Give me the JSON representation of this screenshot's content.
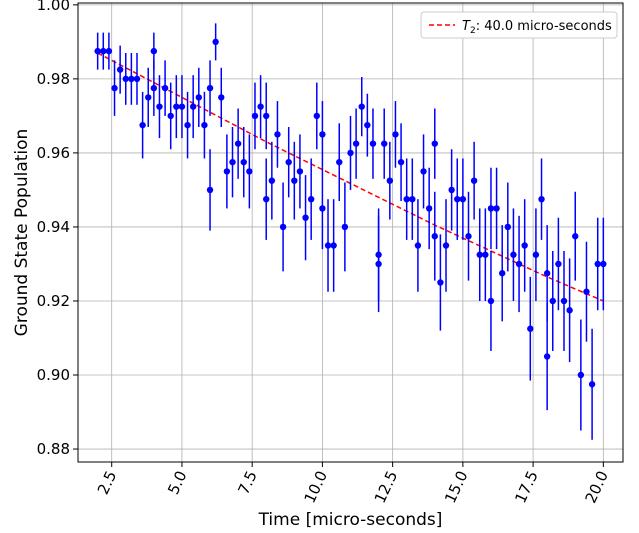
{
  "chart_data": {
    "type": "scatter",
    "title": "",
    "xlabel": "Time [micro-seconds]",
    "ylabel": "Ground State Population",
    "xlim": [
      1.3,
      20.7
    ],
    "ylim": [
      0.8765,
      1.0005
    ],
    "xticks": [
      2.5,
      5.0,
      7.5,
      10.0,
      12.5,
      15.0,
      17.5,
      20.0
    ],
    "xtick_labels": [
      "2.5",
      "5.0",
      "7.5",
      "10.0",
      "12.5",
      "15.0",
      "17.5",
      "20.0"
    ],
    "yticks": [
      0.88,
      0.9,
      0.92,
      0.94,
      0.96,
      0.98,
      1.0
    ],
    "ytick_labels": [
      "0.88",
      "0.90",
      "0.92",
      "0.94",
      "0.96",
      "0.98",
      "1.00"
    ],
    "grid": true,
    "legend_position": "top-right",
    "colors": {
      "points": "#0000ff",
      "fit": "#ff0000"
    },
    "fit": {
      "name_prefix": "T",
      "name_sub": "2",
      "name_suffix": ": 40.0 micro-seconds",
      "style": "dashed",
      "x": [
        2.0,
        4.0,
        6.0,
        8.0,
        10.0,
        12.0,
        14.0,
        16.0,
        18.0,
        20.0
      ],
      "y": [
        0.987,
        0.979,
        0.971,
        0.963,
        0.9555,
        0.948,
        0.9405,
        0.9335,
        0.9265,
        0.92
      ]
    },
    "series": [
      {
        "x": [
          2.0,
          2.2,
          2.4,
          2.6,
          2.8,
          3.0,
          3.2,
          3.4,
          3.6,
          3.8,
          4.0,
          4.0,
          4.2,
          4.4,
          4.6,
          4.8,
          5.0,
          5.2,
          5.4,
          5.6,
          5.8,
          6.0,
          6.0,
          6.2,
          6.4,
          6.6,
          6.8,
          7.0,
          7.2,
          7.4,
          7.6,
          7.8,
          8.0,
          8.0,
          8.2,
          8.4,
          8.6,
          8.8,
          9.0,
          9.2,
          9.4,
          9.6,
          9.8,
          10.0,
          10.0,
          10.2,
          10.4,
          10.6,
          10.8,
          11.0,
          11.2,
          11.4,
          11.6,
          11.8,
          12.0,
          12.0,
          12.2,
          12.4,
          12.6,
          12.8,
          13.0,
          13.2,
          13.4,
          13.6,
          13.8,
          14.0,
          14.0,
          14.2,
          14.4,
          14.6,
          14.8,
          15.0,
          15.2,
          15.4,
          15.6,
          15.8,
          16.0,
          16.0,
          16.2,
          16.4,
          16.6,
          16.8,
          17.0,
          17.2,
          17.4,
          17.6,
          17.8,
          18.0,
          18.0,
          18.2,
          18.4,
          18.6,
          18.8,
          19.0,
          19.2,
          19.4,
          19.6,
          19.8,
          20.0
        ],
        "y": [
          0.9875,
          0.9875,
          0.9875,
          0.9775,
          0.9825,
          0.98,
          0.98,
          0.98,
          0.9675,
          0.975,
          0.9875,
          0.9775,
          0.9725,
          0.9775,
          0.97,
          0.9725,
          0.9725,
          0.9675,
          0.9725,
          0.975,
          0.9675,
          0.9775,
          0.95,
          0.99,
          0.975,
          0.955,
          0.9575,
          0.9625,
          0.9575,
          0.955,
          0.97,
          0.9725,
          0.97,
          0.9475,
          0.9525,
          0.965,
          0.94,
          0.9575,
          0.9525,
          0.955,
          0.9425,
          0.9475,
          0.97,
          0.965,
          0.945,
          0.935,
          0.935,
          0.9575,
          0.94,
          0.96,
          0.9625,
          0.9725,
          0.9675,
          0.9625,
          0.9325,
          0.93,
          0.9625,
          0.9525,
          0.965,
          0.9575,
          0.9475,
          0.9475,
          0.935,
          0.955,
          0.945,
          0.9625,
          0.9375,
          0.925,
          0.935,
          0.95,
          0.9475,
          0.9475,
          0.9375,
          0.9525,
          0.9325,
          0.9325,
          0.945,
          0.92,
          0.945,
          0.9275,
          0.94,
          0.9325,
          0.93,
          0.935,
          0.9125,
          0.9325,
          0.9475,
          0.9275,
          0.905,
          0.92,
          0.93,
          0.92,
          0.9175,
          0.9375,
          0.9,
          0.9225,
          0.8975,
          0.93,
          0.93
        ],
        "yerr": [
          0.005,
          0.005,
          0.005,
          0.0075,
          0.0065,
          0.007,
          0.007,
          0.007,
          0.009,
          0.008,
          0.005,
          0.0075,
          0.0085,
          0.0075,
          0.009,
          0.0085,
          0.0085,
          0.009,
          0.0085,
          0.008,
          0.009,
          0.0075,
          0.011,
          0.005,
          0.008,
          0.01,
          0.0095,
          0.0095,
          0.0095,
          0.01,
          0.009,
          0.0085,
          0.009,
          0.011,
          0.0105,
          0.009,
          0.012,
          0.0095,
          0.0105,
          0.01,
          0.0115,
          0.011,
          0.009,
          0.009,
          0.011,
          0.0125,
          0.0125,
          0.0105,
          0.012,
          0.01,
          0.0095,
          0.008,
          0.0085,
          0.0095,
          0.0125,
          0.013,
          0.0095,
          0.0105,
          0.009,
          0.0105,
          0.011,
          0.011,
          0.0125,
          0.01,
          0.011,
          0.0095,
          0.012,
          0.013,
          0.0125,
          0.011,
          0.011,
          0.011,
          0.012,
          0.0105,
          0.0125,
          0.0125,
          0.011,
          0.0135,
          0.011,
          0.013,
          0.012,
          0.0125,
          0.013,
          0.0125,
          0.014,
          0.0125,
          0.011,
          0.013,
          0.0145,
          0.0135,
          0.0125,
          0.0135,
          0.014,
          0.012,
          0.015,
          0.0135,
          0.015,
          0.0125,
          0.0125
        ]
      }
    ]
  }
}
